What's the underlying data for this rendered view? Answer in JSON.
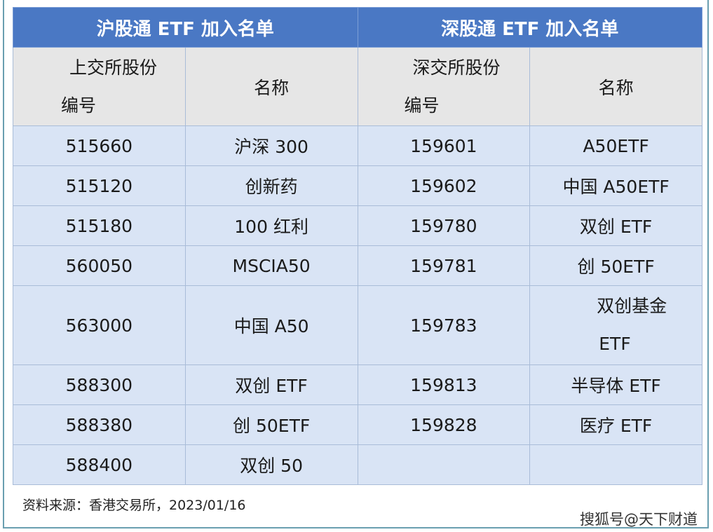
{
  "header": {
    "left_title": "沪股通 ETF 加入名单",
    "right_title": "深股通 ETF 加入名单"
  },
  "subheader": {
    "sh_code_line1": "上交所股份",
    "sh_code_line2": "编号",
    "sh_name": "名称",
    "sz_code_line1": "深交所股份",
    "sz_code_line2": "编号",
    "sz_name": "名称"
  },
  "rows": [
    {
      "sh_code": "515660",
      "sh_name": "沪深 300",
      "sz_code": "159601",
      "sz_name": "A50ETF"
    },
    {
      "sh_code": "515120",
      "sh_name": "创新药",
      "sz_code": "159602",
      "sz_name": "中国 A50ETF"
    },
    {
      "sh_code": "515180",
      "sh_name": "100 红利",
      "sz_code": "159780",
      "sz_name": "双创 ETF"
    },
    {
      "sh_code": "560050",
      "sh_name": "MSCIA50",
      "sz_code": "159781",
      "sz_name": "创 50ETF"
    },
    {
      "sh_code": "563000",
      "sh_name": "中国 A50",
      "sz_code": "159783",
      "sz_name_line1": "双创基金",
      "sz_name_line2": "ETF"
    },
    {
      "sh_code": "588300",
      "sh_name": "双创 ETF",
      "sz_code": "159813",
      "sz_name": "半导体 ETF"
    },
    {
      "sh_code": "588380",
      "sh_name": "创 50ETF",
      "sz_code": "159828",
      "sz_name": "医疗 ETF"
    },
    {
      "sh_code": "588400",
      "sh_name": "双创 50",
      "sz_code": "",
      "sz_name": ""
    }
  ],
  "footer": {
    "source": "资料来源：香港交易所，2023/01/16",
    "watermark": "搜狐号@天下财道"
  },
  "colors": {
    "header_bg": "#4a78c4",
    "subheader_bg": "#e6e6e6",
    "row_bg": "#d9e4f5"
  }
}
